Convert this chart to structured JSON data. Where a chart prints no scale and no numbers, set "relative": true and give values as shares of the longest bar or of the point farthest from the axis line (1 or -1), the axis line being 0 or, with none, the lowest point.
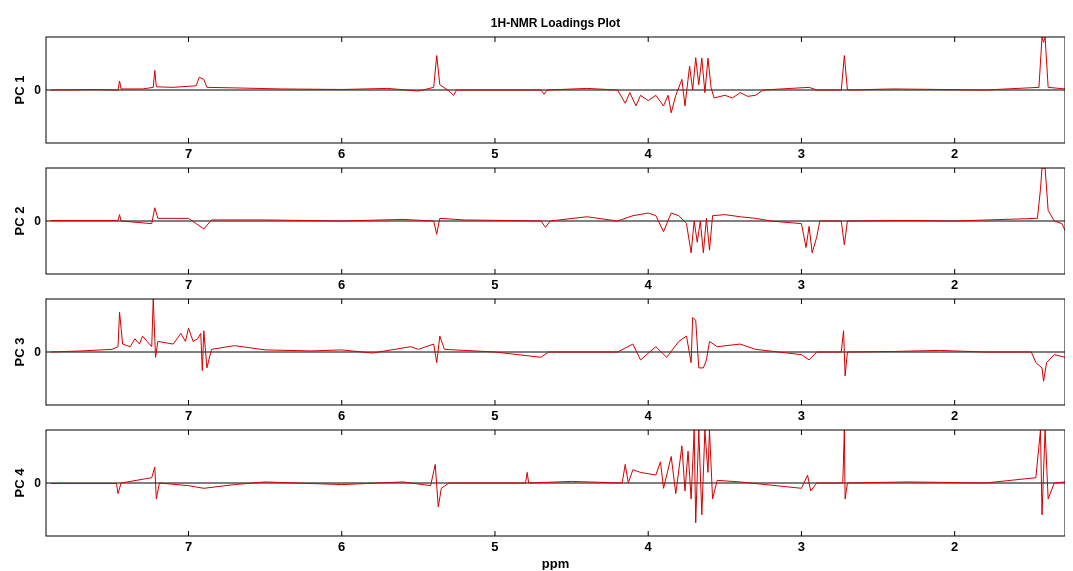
{
  "chart_data": [
    {
      "type": "line",
      "title": "1H-NMR Loadings Plot",
      "ylabel": "PC 1",
      "relative": true,
      "xlim": [
        7.93,
        1.28
      ],
      "xticks": [
        7,
        6,
        5,
        4,
        3,
        2
      ],
      "annotations": [
        "0"
      ],
      "series": [
        {
          "color": "#d40000",
          "x": [
            7.9,
            7.6,
            7.46,
            7.45,
            7.44,
            7.3,
            7.23,
            7.22,
            7.21,
            7.1,
            6.95,
            6.93,
            6.9,
            6.88,
            6.7,
            6.4,
            6.0,
            5.7,
            5.5,
            5.4,
            5.38,
            5.36,
            5.3,
            5.27,
            5.25,
            4.7,
            4.68,
            4.66,
            4.4,
            4.2,
            4.15,
            4.12,
            4.08,
            4.05,
            4.0,
            3.95,
            3.9,
            3.87,
            3.85,
            3.82,
            3.78,
            3.76,
            3.73,
            3.71,
            3.69,
            3.67,
            3.65,
            3.63,
            3.61,
            3.59,
            3.57,
            3.5,
            3.45,
            3.4,
            3.35,
            3.3,
            3.25,
            2.95,
            2.9,
            2.74,
            2.72,
            2.7,
            2.4,
            2.1,
            1.8,
            1.45,
            1.43,
            1.42,
            1.41,
            1.39,
            1.28
          ],
          "values": [
            0,
            0.01,
            0,
            0.17,
            0.02,
            0.02,
            0.05,
            0.37,
            0.06,
            0.05,
            0.08,
            0.24,
            0.2,
            0.05,
            0.04,
            0.02,
            0.01,
            0.03,
            -0.02,
            0.05,
            0.65,
            0.1,
            -0.02,
            -0.1,
            0,
            0,
            -0.08,
            0,
            0.03,
            0,
            -0.25,
            -0.05,
            -0.3,
            -0.1,
            -0.2,
            -0.1,
            -0.3,
            -0.1,
            -0.43,
            -0.1,
            0.2,
            -0.3,
            0.45,
            0,
            0.61,
            0.1,
            0.6,
            -0.05,
            0.6,
            0.05,
            -0.15,
            -0.1,
            -0.15,
            -0.05,
            -0.12,
            -0.1,
            0,
            0.05,
            0,
            0,
            0.65,
            0,
            0.02,
            0.01,
            0,
            0.05,
            1,
            0.9,
            1,
            0.05,
            0.02
          ]
        }
      ]
    },
    {
      "type": "line",
      "ylabel": "PC 2",
      "relative": true,
      "xlim": [
        7.93,
        1.28
      ],
      "xticks": [
        7,
        6,
        5,
        4,
        3,
        2
      ],
      "annotations": [
        "0"
      ],
      "series": [
        {
          "color": "#d40000",
          "x": [
            7.9,
            7.46,
            7.45,
            7.44,
            7.24,
            7.22,
            7.2,
            7.0,
            6.95,
            6.9,
            6.85,
            6.5,
            6.0,
            5.6,
            5.4,
            5.38,
            5.36,
            5.2,
            4.7,
            4.67,
            4.64,
            4.4,
            4.2,
            4.1,
            4.0,
            3.95,
            3.9,
            3.85,
            3.8,
            3.75,
            3.72,
            3.7,
            3.68,
            3.66,
            3.64,
            3.62,
            3.6,
            3.58,
            3.5,
            3.4,
            3.3,
            3.2,
            3.0,
            2.97,
            2.95,
            2.93,
            2.9,
            2.88,
            2.74,
            2.72,
            2.7,
            2.3,
            2.0,
            1.46,
            1.44,
            1.43,
            1.41,
            1.39,
            1.35,
            1.3,
            1.28
          ],
          "values": [
            0.01,
            0.01,
            0.12,
            0,
            -0.05,
            0.25,
            0.05,
            0.05,
            -0.05,
            -0.15,
            0.02,
            0.02,
            0,
            0.03,
            0,
            -0.25,
            0.05,
            0.02,
            0,
            -0.12,
            0,
            0.08,
            0,
            0.1,
            0.15,
            0.1,
            -0.2,
            0.15,
            0.1,
            -0.05,
            -0.6,
            0,
            -0.4,
            0,
            -0.6,
            0.05,
            -0.55,
            0.1,
            0.12,
            0.08,
            0.05,
            0,
            -0.05,
            -0.5,
            -0.1,
            -0.6,
            -0.3,
            0,
            0,
            -0.45,
            0,
            0.01,
            0,
            0.05,
            0.6,
            1,
            1,
            0.2,
            0,
            -0.05,
            -0.18
          ]
        }
      ]
    },
    {
      "type": "line",
      "ylabel": "PC 3",
      "relative": true,
      "xlim": [
        7.93,
        1.28
      ],
      "xticks": [
        7,
        6,
        5,
        4,
        3,
        2
      ],
      "annotations": [
        "0"
      ],
      "series": [
        {
          "color": "#d40000",
          "x": [
            7.9,
            7.7,
            7.5,
            7.46,
            7.45,
            7.43,
            7.38,
            7.35,
            7.32,
            7.3,
            7.27,
            7.24,
            7.23,
            7.215,
            7.2,
            7.1,
            7.05,
            7.02,
            7.0,
            6.97,
            6.94,
            6.92,
            6.91,
            6.9,
            6.88,
            6.85,
            6.7,
            6.5,
            6.2,
            6.0,
            5.8,
            5.55,
            5.5,
            5.45,
            5.4,
            5.38,
            5.36,
            5.33,
            5.0,
            4.7,
            4.65,
            4.2,
            4.1,
            4.05,
            3.95,
            3.88,
            3.8,
            3.75,
            3.72,
            3.71,
            3.69,
            3.67,
            3.64,
            3.62,
            3.6,
            3.55,
            3.4,
            3.3,
            3.0,
            2.95,
            2.9,
            2.74,
            2.725,
            2.715,
            2.7,
            2.4,
            2.1,
            1.8,
            1.5,
            1.47,
            1.43,
            1.42,
            1.4,
            1.35,
            1.28
          ],
          "values": [
            0,
            0.02,
            0.05,
            0.1,
            0.75,
            0.15,
            0.1,
            0.25,
            0.15,
            0.3,
            0.2,
            0.1,
            1,
            -0.1,
            0.2,
            0.15,
            0.35,
            0.2,
            0.45,
            0.2,
            0.25,
            0.35,
            -0.35,
            0.4,
            -0.3,
            0.05,
            0.12,
            0.04,
            0.02,
            0.04,
            -0.02,
            0.1,
            0.05,
            0.1,
            0.15,
            -0.2,
            0.3,
            0.05,
            0,
            -0.1,
            0,
            0,
            0.15,
            -0.15,
            0.1,
            -0.1,
            0.2,
            0.3,
            -0.2,
            0.65,
            0.6,
            -0.3,
            -0.3,
            -0.15,
            0.2,
            0.1,
            0.15,
            0.05,
            -0.05,
            -0.15,
            0,
            0,
            0.4,
            -0.45,
            0,
            0.01,
            0.03,
            0,
            0,
            -0.2,
            -0.3,
            -0.55,
            -0.2,
            -0.05,
            -0.1
          ]
        }
      ]
    },
    {
      "type": "line",
      "ylabel": "PC 4",
      "xlabel": "ppm",
      "relative": true,
      "xlim": [
        7.93,
        1.28
      ],
      "xticks": [
        7,
        6,
        5,
        4,
        3,
        2
      ],
      "annotations": [
        "0"
      ],
      "series": [
        {
          "color": "#d40000",
          "x": [
            7.9,
            7.47,
            7.46,
            7.44,
            7.24,
            7.22,
            7.21,
            7.19,
            7.0,
            6.9,
            6.7,
            6.5,
            6.0,
            5.6,
            5.42,
            5.39,
            5.37,
            5.35,
            5.3,
            4.8,
            4.79,
            4.78,
            4.5,
            4.17,
            4.15,
            4.13,
            4.1,
            4.05,
            3.95,
            3.92,
            3.9,
            3.85,
            3.82,
            3.78,
            3.76,
            3.74,
            3.72,
            3.7,
            3.69,
            3.67,
            3.65,
            3.63,
            3.61,
            3.6,
            3.58,
            3.55,
            3.4,
            3.0,
            2.96,
            2.94,
            2.9,
            2.73,
            2.72,
            2.715,
            2.7,
            2.3,
            1.8,
            1.47,
            1.44,
            1.43,
            1.41,
            1.39,
            1.35,
            1.28
          ],
          "values": [
            -0.01,
            -0.01,
            -0.2,
            0,
            0.1,
            0.3,
            -0.3,
            0,
            -0.05,
            -0.1,
            -0.03,
            0.02,
            -0.03,
            0.02,
            -0.05,
            0.35,
            -0.45,
            -0.1,
            0,
            0,
            0.2,
            0,
            0.03,
            0,
            0.35,
            0,
            0.25,
            0.2,
            0.15,
            0.4,
            -0.1,
            0.5,
            -0.2,
            0.7,
            -0.15,
            0.6,
            -0.3,
            1,
            -0.75,
            1,
            -0.6,
            1,
            0.2,
            1,
            -0.3,
            0.05,
            0.02,
            -0.1,
            0.15,
            -0.15,
            0,
            0,
            1,
            -0.3,
            0,
            0.02,
            0,
            0.1,
            1,
            -0.6,
            1,
            -0.3,
            0,
            0.02
          ]
        }
      ]
    }
  ]
}
